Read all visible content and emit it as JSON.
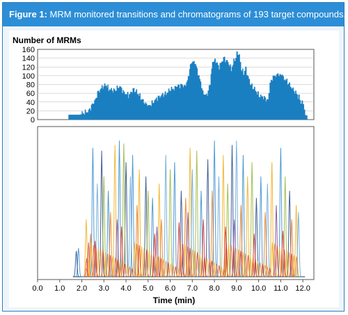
{
  "figure": {
    "label": "Figure 1:",
    "caption": "MRM monitored transitions and chromatograms of 193 target compounds."
  },
  "chart_data": [
    {
      "type": "area",
      "title": "Number of MRMs",
      "xlabel": "",
      "ylabel": "",
      "ylim": [
        0,
        160
      ],
      "yticks": [
        0,
        20,
        40,
        60,
        80,
        100,
        120,
        140,
        160
      ],
      "xlim": [
        0.0,
        12.5
      ],
      "color": "#1a7fc1",
      "grid": true,
      "x": [
        1.4,
        1.9,
        2.0,
        2.1,
        2.3,
        2.5,
        2.6,
        2.7,
        2.9,
        3.1,
        3.2,
        3.4,
        3.5,
        3.7,
        3.9,
        4.1,
        4.2,
        4.3,
        4.5,
        4.65,
        4.8,
        4.9,
        5.0,
        5.2,
        5.4,
        5.6,
        5.8,
        6.0,
        6.2,
        6.3,
        6.5,
        6.65,
        6.8,
        6.9,
        7.0,
        7.1,
        7.2,
        7.4,
        7.5,
        7.6,
        7.7,
        7.8,
        7.9,
        8.0,
        8.1,
        8.2,
        8.4,
        8.6,
        8.75,
        8.9,
        9.0,
        9.1,
        9.2,
        9.3,
        9.4,
        9.5,
        9.6,
        9.8,
        10.0,
        10.2,
        10.4,
        10.5,
        10.6,
        10.8,
        10.9,
        11.0,
        11.1,
        11.3,
        11.5,
        11.7,
        11.8,
        11.9,
        12.0,
        12.1,
        12.2
      ],
      "values": [
        11,
        11,
        12,
        15,
        20,
        38,
        45,
        60,
        75,
        78,
        70,
        65,
        68,
        75,
        62,
        55,
        60,
        70,
        62,
        50,
        40,
        35,
        30,
        40,
        48,
        56,
        60,
        68,
        72,
        75,
        80,
        76,
        95,
        125,
        130,
        132,
        115,
        75,
        58,
        55,
        62,
        85,
        130,
        138,
        125,
        120,
        140,
        132,
        115,
        138,
        150,
        148,
        112,
        108,
        115,
        98,
        80,
        70,
        55,
        50,
        45,
        80,
        95,
        102,
        100,
        105,
        96,
        85,
        70,
        60,
        50,
        40,
        35,
        10,
        8
      ]
    },
    {
      "type": "line",
      "title": "",
      "xlabel": "Time (min)",
      "ylabel": "",
      "xlim": [
        0.0,
        12.5
      ],
      "xticks": [
        "0.0",
        "1.0",
        "2.0",
        "3.0",
        "4.0",
        "5.0",
        "6.0",
        "7.0",
        "8.0",
        "9.0",
        "10.0",
        "11.0",
        "12.0"
      ],
      "ylim": [
        0,
        100
      ],
      "grid": false,
      "series": [
        {
          "color": "#3a8fd0",
          "peaks": [
            [
              1.85,
              20
            ],
            [
              2.5,
              90
            ],
            [
              3.2,
              60
            ],
            [
              3.7,
              95
            ],
            [
              4.3,
              85
            ],
            [
              5.2,
              55
            ],
            [
              6.2,
              80
            ],
            [
              7.4,
              60
            ],
            [
              8.0,
              95
            ],
            [
              9.3,
              85
            ],
            [
              10.1,
              70
            ],
            [
              11.0,
              90
            ]
          ]
        },
        {
          "color": "#2f4e8c",
          "peaks": [
            [
              1.75,
              18
            ],
            [
              2.9,
              88
            ],
            [
              4.0,
              80
            ],
            [
              4.9,
              70
            ],
            [
              6.5,
              60
            ],
            [
              7.7,
              82
            ],
            [
              8.8,
              92
            ],
            [
              9.9,
              55
            ],
            [
              11.4,
              60
            ]
          ]
        },
        {
          "color": "#f0b020",
          "peaks": [
            [
              2.2,
              40
            ],
            [
              3.5,
              92
            ],
            [
              4.6,
              75
            ],
            [
              5.5,
              65
            ],
            [
              6.9,
              90
            ],
            [
              8.4,
              85
            ],
            [
              9.5,
              70
            ],
            [
              10.6,
              80
            ],
            [
              11.7,
              50
            ]
          ]
        },
        {
          "color": "#9ab840",
          "peaks": [
            [
              3.0,
              70
            ],
            [
              3.9,
              93
            ],
            [
              5.0,
              60
            ],
            [
              6.0,
              75
            ],
            [
              7.2,
              88
            ],
            [
              8.6,
              65
            ],
            [
              9.7,
              80
            ],
            [
              11.2,
              70
            ]
          ]
        },
        {
          "color": "#6aa8d8",
          "peaks": [
            [
              2.7,
              65
            ],
            [
              4.2,
              70
            ],
            [
              5.8,
              85
            ],
            [
              7.0,
              75
            ],
            [
              8.2,
              70
            ],
            [
              9.0,
              95
            ],
            [
              10.4,
              65
            ],
            [
              11.8,
              45
            ]
          ]
        },
        {
          "color": "#e8802a",
          "peaks": [
            [
              2.4,
              30
            ],
            [
              3.3,
              45
            ],
            [
              4.5,
              50
            ],
            [
              5.6,
              40
            ],
            [
              6.7,
              55
            ],
            [
              7.9,
              60
            ],
            [
              9.2,
              50
            ],
            [
              10.3,
              45
            ],
            [
              11.5,
              40
            ]
          ]
        },
        {
          "color": "#d8322a",
          "peaks": [
            [
              2.6,
              25
            ],
            [
              3.8,
              35
            ],
            [
              5.3,
              30
            ],
            [
              6.4,
              38
            ],
            [
              7.5,
              40
            ],
            [
              8.5,
              35
            ],
            [
              9.8,
              30
            ],
            [
              11.1,
              32
            ]
          ]
        },
        {
          "color": "#7a4f9a",
          "peaks": [
            [
              3.6,
              40
            ],
            [
              5.4,
              35
            ],
            [
              6.8,
              45
            ],
            [
              8.9,
              40
            ],
            [
              10.8,
              50
            ]
          ]
        }
      ]
    }
  ]
}
